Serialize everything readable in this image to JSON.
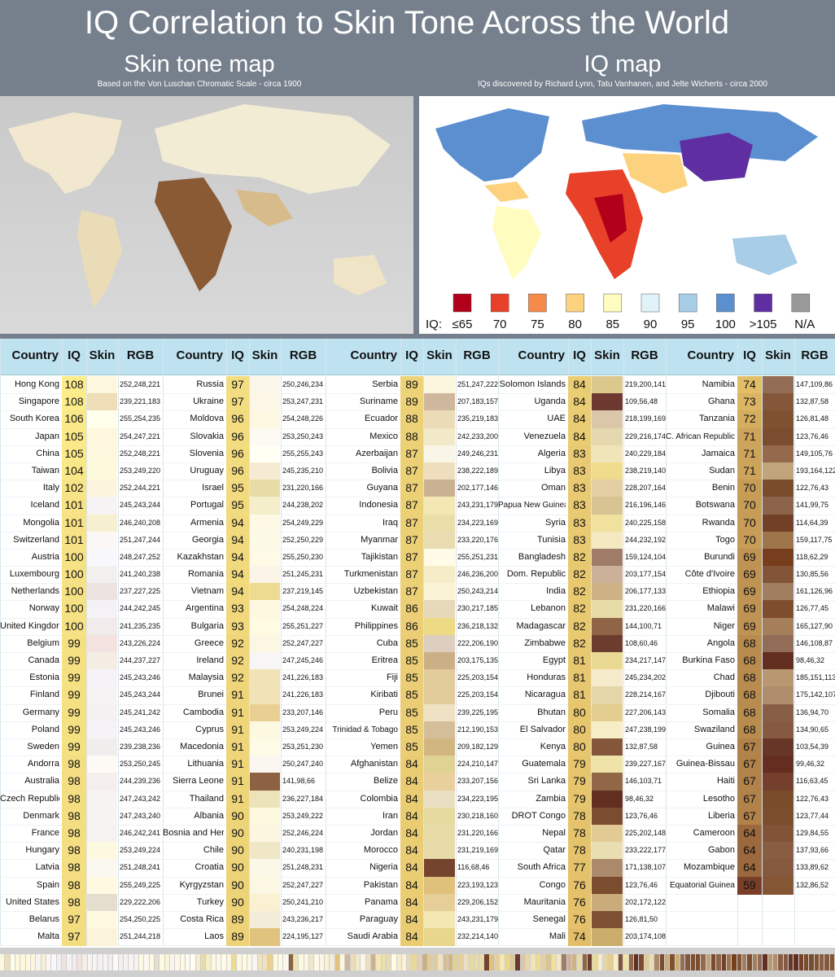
{
  "header": {
    "title": "IQ Correlation to Skin Tone Across the World",
    "left_title": "Skin tone map",
    "left_caption": "Based on the Von Luschan Chromatic Scale - circa 1900",
    "right_title": "IQ map",
    "right_caption": "IQs discovered by Richard Lynn, Tatu Vanhanen, and Jelte Wicherts - circa 2000"
  },
  "legend": {
    "prefix": "IQ:",
    "items": [
      {
        "label": "≤65",
        "color": "#b2001a"
      },
      {
        "label": "70",
        "color": "#e8412a"
      },
      {
        "label": "75",
        "color": "#f58a4b"
      },
      {
        "label": "80",
        "color": "#fdd27e"
      },
      {
        "label": "85",
        "color": "#fffcc0"
      },
      {
        "label": "90",
        "color": "#e0f3f8"
      },
      {
        "label": "95",
        "color": "#a8cde6"
      },
      {
        "label": "100",
        "color": "#5b8fd0"
      },
      {
        "label": ">105",
        "color": "#5f2ea0"
      },
      {
        "label": "N/A",
        "color": "#999999"
      }
    ]
  },
  "table": {
    "header": [
      "Country",
      "IQ",
      "Skin",
      "RGB"
    ],
    "groups": [
      {
        "rows": [
          [
            "Hong Kong",
            108,
            "252,248,221"
          ],
          [
            "Singapore",
            108,
            "239,221,183"
          ],
          [
            "South Korea",
            106,
            "255,254,235"
          ],
          [
            "Japan",
            105,
            "254,247,221"
          ],
          [
            "China",
            105,
            "252,248,221"
          ],
          [
            "Taiwan",
            104,
            "253,249,220"
          ],
          [
            "Italy",
            102,
            "252,244,221"
          ],
          [
            "Iceland",
            101,
            "245,243,244"
          ],
          [
            "Mongolia",
            101,
            "246,240,208"
          ],
          [
            "Switzerland",
            101,
            "251,247,244"
          ],
          [
            "Austria",
            100,
            "248,247,252"
          ],
          [
            "Luxembourg",
            100,
            "241,240,238"
          ],
          [
            "Netherlands",
            100,
            "237,227,225"
          ],
          [
            "Norway",
            100,
            "244,242,245"
          ],
          [
            "United Kingdom",
            100,
            "241,235,235"
          ],
          [
            "Belgium",
            99,
            "243,226,224"
          ],
          [
            "Canada",
            99,
            "244,237,227"
          ],
          [
            "Estonia",
            99,
            "245,243,246"
          ],
          [
            "Finland",
            99,
            "245,243,244"
          ],
          [
            "Germany",
            99,
            "245,241,242"
          ],
          [
            "Poland",
            99,
            "245,243,246"
          ],
          [
            "Sweden",
            99,
            "239,238,236"
          ],
          [
            "Andorra",
            98,
            "253,250,245"
          ],
          [
            "Australia",
            98,
            "244,239,236"
          ],
          [
            "Czech Republic",
            98,
            "247,243,242"
          ],
          [
            "Denmark",
            98,
            "247,243,240"
          ],
          [
            "France",
            98,
            "246,242,241"
          ],
          [
            "Hungary",
            98,
            "253,249,224"
          ],
          [
            "Latvia",
            98,
            "251,248,241"
          ],
          [
            "Spain",
            98,
            "255,249,225"
          ],
          [
            "United States",
            98,
            "229,222,206"
          ],
          [
            "Belarus",
            97,
            "254,250,225"
          ],
          [
            "Malta",
            97,
            "251,244,218"
          ]
        ]
      },
      {
        "rows": [
          [
            "Russia",
            97,
            "250,246,234"
          ],
          [
            "Ukraine",
            97,
            "253,247,231"
          ],
          [
            "Moldova",
            96,
            "254,248,226"
          ],
          [
            "Slovakia",
            96,
            "253,250,243"
          ],
          [
            "Slovenia",
            96,
            "255,255,243"
          ],
          [
            "Uruguay",
            96,
            "245,235,210"
          ],
          [
            "Israel",
            95,
            "231,220,166"
          ],
          [
            "Portugal",
            95,
            "244,238,202"
          ],
          [
            "Armenia",
            94,
            "254,249,229"
          ],
          [
            "Georgia",
            94,
            "252,250,229"
          ],
          [
            "Kazakhstan",
            94,
            "255,250,230"
          ],
          [
            "Romania",
            94,
            "251,245,231"
          ],
          [
            "Vietnam",
            94,
            "237,219,145"
          ],
          [
            "Argentina",
            93,
            "254,248,224"
          ],
          [
            "Bulgaria",
            93,
            "255,251,227"
          ],
          [
            "Greece",
            92,
            "252,247,227"
          ],
          [
            "Ireland",
            92,
            "247,245,246"
          ],
          [
            "Malaysia",
            92,
            "241,226,183"
          ],
          [
            "Brunei",
            91,
            "241,226,183"
          ],
          [
            "Cambodia",
            91,
            "233,207,146"
          ],
          [
            "Cyprus",
            91,
            "253,249,224"
          ],
          [
            "Macedonia",
            91,
            "253,251,230"
          ],
          [
            "Lithuania",
            91,
            "250,247,240"
          ],
          [
            "Sierra Leone",
            91,
            "141,98,66"
          ],
          [
            "Thailand",
            91,
            "236,227,184"
          ],
          [
            "Albania",
            90,
            "253,249,222"
          ],
          [
            "Bosnia and Herz",
            90,
            "252,246,224"
          ],
          [
            "Chile",
            90,
            "240,231,198"
          ],
          [
            "Croatia",
            90,
            "251,248,231"
          ],
          [
            "Kyrgyzstan",
            90,
            "252,247,227"
          ],
          [
            "Turkey",
            90,
            "250,241,210"
          ],
          [
            "Costa Rica",
            89,
            "243,236,217"
          ],
          [
            "Laos",
            89,
            "224,195,127"
          ]
        ]
      },
      {
        "rows": [
          [
            "Serbia",
            89,
            "251,247,222"
          ],
          [
            "Suriname",
            89,
            "207,183,157"
          ],
          [
            "Ecuador",
            88,
            "235,219,183"
          ],
          [
            "Mexico",
            88,
            "242,233,200"
          ],
          [
            "Azerbaijan",
            87,
            "249,246,231"
          ],
          [
            "Bolivia",
            87,
            "238,222,189"
          ],
          [
            "Guyana",
            87,
            "202,177,146"
          ],
          [
            "Indonesia",
            87,
            "243,231,179"
          ],
          [
            "Iraq",
            87,
            "234,223,169"
          ],
          [
            "Myanmar",
            87,
            "233,220,176"
          ],
          [
            "Tajikistan",
            87,
            "255,251,231"
          ],
          [
            "Turkmenistan",
            87,
            "246,236,200"
          ],
          [
            "Uzbekistan",
            87,
            "250,243,214"
          ],
          [
            "Kuwait",
            86,
            "230,217,185"
          ],
          [
            "Philippines",
            86,
            "236,218,132"
          ],
          [
            "Cuba",
            85,
            "222,206,190"
          ],
          [
            "Eritrea",
            85,
            "203,175,135"
          ],
          [
            "Fiji",
            85,
            "225,203,154"
          ],
          [
            "Kiribati",
            85,
            "225,203,154"
          ],
          [
            "Peru",
            85,
            "239,225,195"
          ],
          [
            "Trinidad & Tobago",
            85,
            "212,190,153"
          ],
          [
            "Yemen",
            85,
            "209,182,129"
          ],
          [
            "Afghanistan",
            84,
            "224,210,147"
          ],
          [
            "Belize",
            84,
            "233,207,156"
          ],
          [
            "Colombia",
            84,
            "234,223,195"
          ],
          [
            "Iran",
            84,
            "230,218,160"
          ],
          [
            "Jordan",
            84,
            "231,220,166"
          ],
          [
            "Morocco",
            84,
            "231,219,169"
          ],
          [
            "Nigeria",
            84,
            "116,68,46"
          ],
          [
            "Pakistan",
            84,
            "223,193,123"
          ],
          [
            "Panama",
            84,
            "229,206,152"
          ],
          [
            "Paraguay",
            84,
            "243,231,179"
          ],
          [
            "Saudi Arabia",
            84,
            "232,214,140"
          ]
        ]
      },
      {
        "rows": [
          [
            "Solomon Islands",
            84,
            "219,200,141"
          ],
          [
            "Uganda",
            84,
            "109,56,48"
          ],
          [
            "UAE",
            84,
            "218,199,169"
          ],
          [
            "Venezuela",
            84,
            "229,216,174"
          ],
          [
            "Algeria",
            83,
            "240,229,184"
          ],
          [
            "Libya",
            83,
            "238,219,140"
          ],
          [
            "Oman",
            83,
            "228,207,164"
          ],
          [
            "Papua New Guinea",
            83,
            "216,196,146"
          ],
          [
            "Syria",
            83,
            "240,225,158"
          ],
          [
            "Tunisia",
            83,
            "244,232,192"
          ],
          [
            "Bangladesh",
            82,
            "159,124,104"
          ],
          [
            "Dom. Republic",
            82,
            "203,177,154"
          ],
          [
            "India",
            82,
            "206,177,133"
          ],
          [
            "Lebanon",
            82,
            "231,220,166"
          ],
          [
            "Madagascar",
            82,
            "144,100,71"
          ],
          [
            "Zimbabwe",
            82,
            "108,60,46"
          ],
          [
            "Egypt",
            81,
            "234,217,147"
          ],
          [
            "Honduras",
            81,
            "245,234,202"
          ],
          [
            "Nicaragua",
            81,
            "228,214,167"
          ],
          [
            "Bhutan",
            80,
            "227,206,143"
          ],
          [
            "El Salvador",
            80,
            "247,238,199"
          ],
          [
            "Kenya",
            80,
            "132,87,58"
          ],
          [
            "Guatemala",
            79,
            "239,227,167"
          ],
          [
            "Sri Lanka",
            79,
            "146,103,71"
          ],
          [
            "Zambia",
            79,
            "98,46,32"
          ],
          [
            "DROT Congo",
            78,
            "123,76,46"
          ],
          [
            "Nepal",
            78,
            "225,202,148"
          ],
          [
            "Qatar",
            78,
            "233,222,177"
          ],
          [
            "South Africa",
            77,
            "171,138,107"
          ],
          [
            "Congo",
            76,
            "123,76,46"
          ],
          [
            "Mauritania",
            76,
            "202,172,122"
          ],
          [
            "Senegal",
            76,
            "126,81,50"
          ],
          [
            "Mali",
            74,
            "203,174,108"
          ]
        ]
      },
      {
        "rows": [
          [
            "Namibia",
            74,
            "147,109,86"
          ],
          [
            "Ghana",
            73,
            "132,87,58"
          ],
          [
            "Tanzania",
            72,
            "126,81,48"
          ],
          [
            "C. African Republic",
            71,
            "123,76,46"
          ],
          [
            "Jamaica",
            71,
            "149,105,76"
          ],
          [
            "Sudan",
            71,
            "193,164,122"
          ],
          [
            "Benin",
            70,
            "122,76,43"
          ],
          [
            "Botswana",
            70,
            "141,99,75"
          ],
          [
            "Rwanda",
            70,
            "114,64,39"
          ],
          [
            "Togo",
            70,
            "159,117,75"
          ],
          [
            "Burundi",
            69,
            "118,62,29"
          ],
          [
            "Côte d'Ivoire",
            69,
            "130,85,56"
          ],
          [
            "Ethiopia",
            69,
            "161,126,96"
          ],
          [
            "Malawi",
            69,
            "126,77,45"
          ],
          [
            "Niger",
            69,
            "165,127,90"
          ],
          [
            "Angola",
            68,
            "146,108,87"
          ],
          [
            "Burkina Faso",
            68,
            "98,46,32"
          ],
          [
            "Chad",
            68,
            "185,151,113"
          ],
          [
            "Djibouti",
            68,
            "175,142,107"
          ],
          [
            "Somalia",
            68,
            "136,94,70"
          ],
          [
            "Swaziland",
            68,
            "134,90,65"
          ],
          [
            "Guinea",
            67,
            "103,54,39"
          ],
          [
            "Guinea-Bissau",
            67,
            "99,46,32"
          ],
          [
            "Haiti",
            67,
            "116,63,45"
          ],
          [
            "Lesotho",
            67,
            "122,76,43"
          ],
          [
            "Liberia",
            67,
            "123,77,44"
          ],
          [
            "Cameroon",
            64,
            "129,84,55"
          ],
          [
            "Gabon",
            64,
            "137,93,66"
          ],
          [
            "Mozambique",
            64,
            "133,89,62"
          ],
          [
            "Equatorial Guinea",
            59,
            "132,86,52"
          ]
        ]
      }
    ]
  }
}
